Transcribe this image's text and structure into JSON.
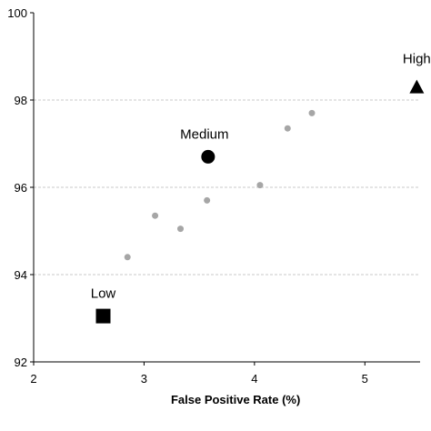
{
  "chart_data": {
    "type": "scatter",
    "title": "",
    "xlabel": "False Positive Rate (%)",
    "ylabel": "",
    "xlim": [
      2,
      5.5
    ],
    "ylim": [
      92,
      100
    ],
    "xticks": [
      2,
      3,
      4,
      5
    ],
    "yticks": [
      92,
      94,
      96,
      98,
      100
    ],
    "grid": "horizontal dashed",
    "legend": "none",
    "series": [
      {
        "marker": "circle-small",
        "color": "#a6a6a6",
        "points": [
          {
            "x": 2.85,
            "y": 94.4
          },
          {
            "x": 3.1,
            "y": 95.35
          },
          {
            "x": 3.33,
            "y": 95.05
          },
          {
            "x": 3.57,
            "y": 95.7
          },
          {
            "x": 4.05,
            "y": 96.05
          },
          {
            "x": 4.3,
            "y": 97.35
          },
          {
            "x": 4.52,
            "y": 97.7
          }
        ]
      },
      {
        "marker": "square",
        "color": "#000000",
        "points": [
          {
            "x": 2.63,
            "y": 93.05,
            "label": "Low"
          }
        ]
      },
      {
        "marker": "circle",
        "color": "#000000",
        "points": [
          {
            "x": 3.58,
            "y": 96.7,
            "label": "Medium"
          }
        ]
      },
      {
        "marker": "triangle",
        "color": "#000000",
        "points": [
          {
            "x": 5.47,
            "y": 98.3,
            "label": "High"
          }
        ]
      }
    ]
  }
}
